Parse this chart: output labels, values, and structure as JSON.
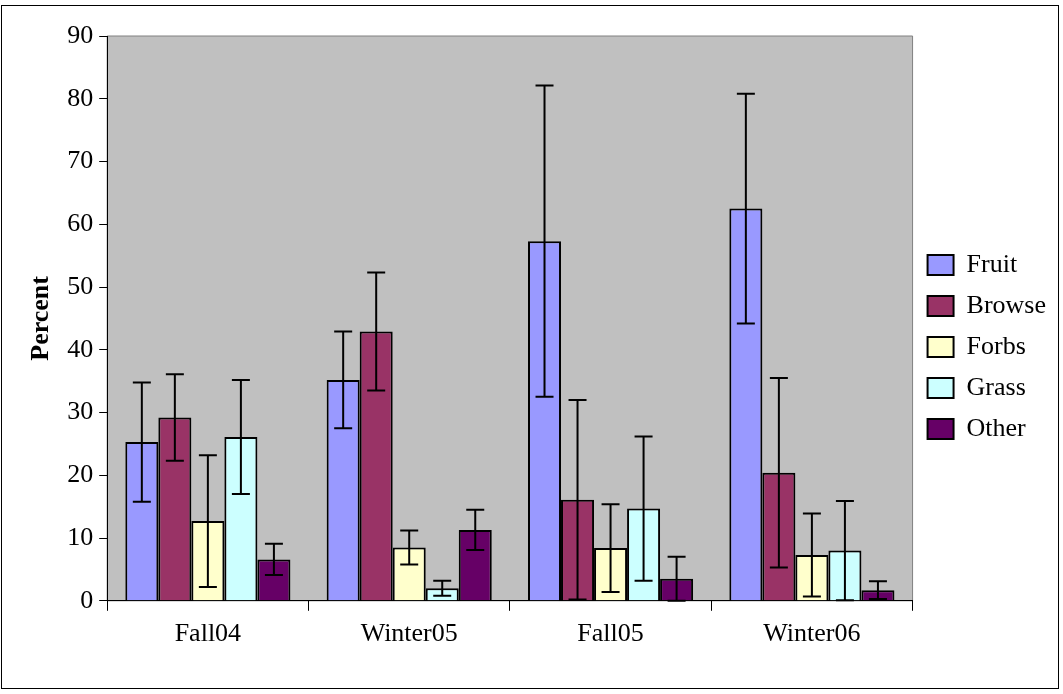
{
  "chart_data": {
    "type": "bar",
    "ylabel": "Percent",
    "categories": [
      "Fall04",
      "Winter05",
      "Fall05",
      "Winter06"
    ],
    "series": [
      {
        "name": "Fruit",
        "color": "#9999ff",
        "values": [
          25.3,
          35.2,
          57.3,
          62.5
        ],
        "errors": [
          9.5,
          7.7,
          24.8,
          18.3
        ]
      },
      {
        "name": "Browse",
        "color": "#993366",
        "values": [
          29.2,
          42.9,
          16.1,
          20.4
        ],
        "errors": [
          6.9,
          9.4,
          15.9,
          15.1
        ]
      },
      {
        "name": "Forbs",
        "color": "#ffffcc",
        "values": [
          12.7,
          8.5,
          8.4,
          7.3
        ],
        "errors": [
          10.5,
          2.7,
          7.0,
          6.6
        ]
      },
      {
        "name": "Grass",
        "color": "#ccffff",
        "values": [
          26.1,
          2.0,
          14.7,
          8.0
        ],
        "errors": [
          9.1,
          1.2,
          11.5,
          7.9
        ]
      },
      {
        "name": "Other",
        "color": "#660066",
        "values": [
          6.6,
          11.3,
          3.5,
          1.7
        ],
        "errors": [
          2.5,
          3.2,
          3.5,
          1.4
        ]
      }
    ],
    "ylim": [
      0,
      90
    ],
    "yticks": [
      0,
      10,
      20,
      30,
      40,
      50,
      60,
      70,
      80,
      90
    ],
    "grid": false,
    "legend": "right"
  }
}
